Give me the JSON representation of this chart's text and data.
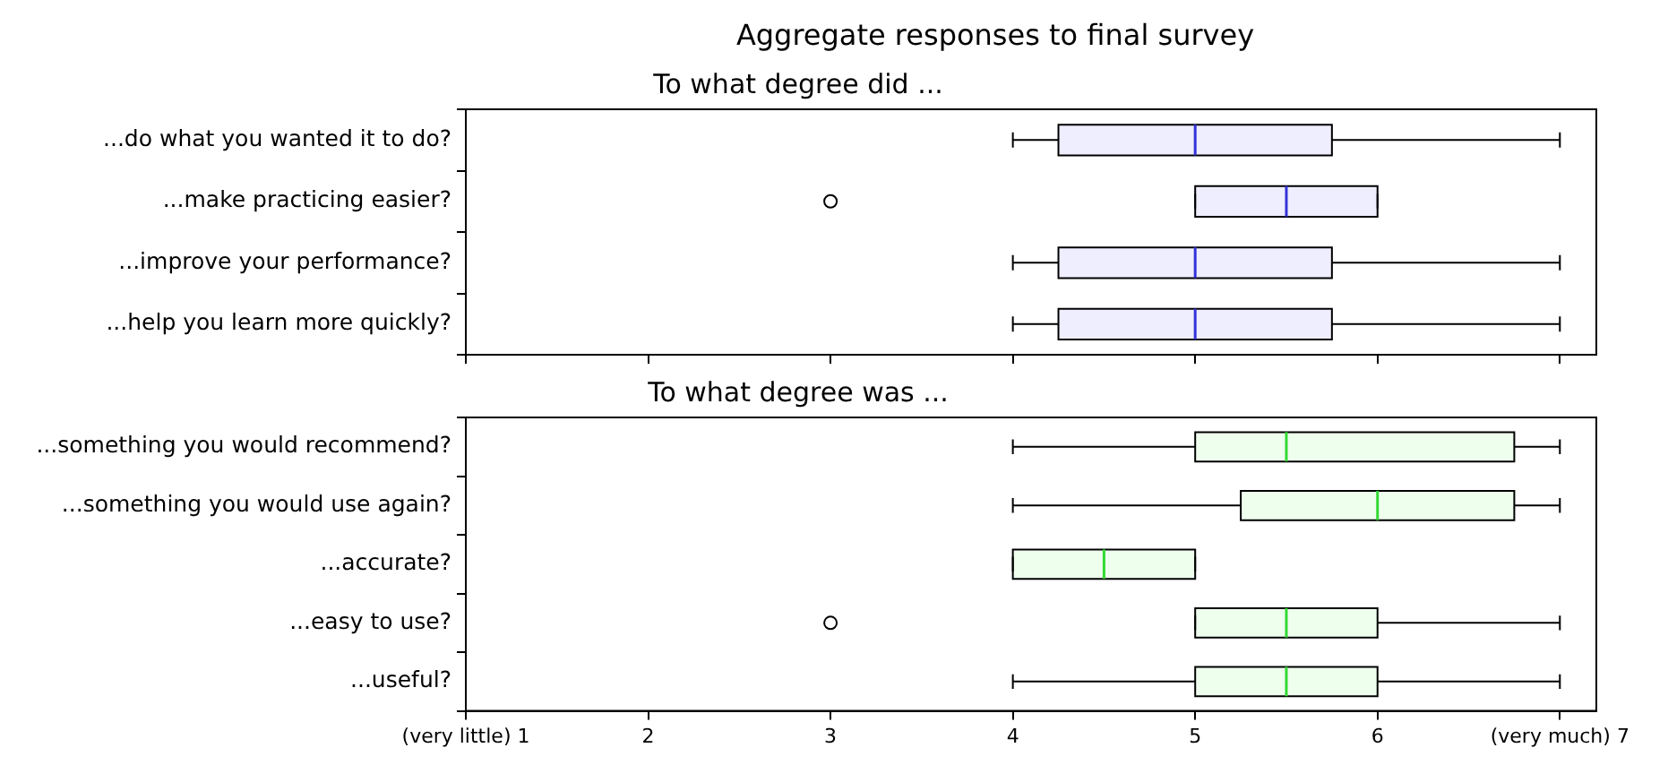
{
  "chart_data": [
    {
      "type": "box",
      "title": "Aggregate responses to final survey",
      "subtitle": "To what degree did ...",
      "categories": [
        "...do what you wanted it to do?",
        "...make practicing easier?",
        "...improve your performance?",
        "...help you learn more quickly?"
      ],
      "series": [
        {
          "color": "#eeeeff",
          "boxes": [
            {
              "low": 4,
              "q1": 4.25,
              "median": 5,
              "q3": 5.75,
              "high": 7
            },
            {
              "low": 5,
              "q1": 5,
              "median": 5.5,
              "q3": 6,
              "high": 6,
              "outliers": [
                3
              ]
            },
            {
              "low": 4,
              "q1": 4.25,
              "median": 5,
              "q3": 5.75,
              "high": 7
            },
            {
              "low": 4,
              "q1": 4.25,
              "median": 5,
              "q3": 5.75,
              "high": 7
            }
          ]
        }
      ],
      "orientation": "horizontal",
      "xlim": [
        1,
        7.2
      ],
      "xticks": [
        1,
        2,
        3,
        4,
        5,
        6,
        7
      ],
      "tick_labels": "y",
      "grid": false,
      "legend": false
    },
    {
      "type": "box",
      "title": "To what degree was ...",
      "categories": [
        "...something you would recommend?",
        "...something you would use again?",
        "...accurate?",
        "...easy to use?",
        "...useful?"
      ],
      "series": [
        {
          "color": "#eeffee",
          "boxes": [
            {
              "low": 4,
              "q1": 5,
              "median": 5.5,
              "q3": 6.75,
              "high": 7
            },
            {
              "low": 4,
              "q1": 5.25,
              "median": 6,
              "q3": 6.75,
              "high": 7
            },
            {
              "low": 4,
              "q1": 4,
              "median": 4.5,
              "q3": 5,
              "high": 5
            },
            {
              "low": 5,
              "q1": 5,
              "median": 5.5,
              "q3": 6,
              "high": 7,
              "outliers": [
                3
              ]
            },
            {
              "low": 4,
              "q1": 5,
              "median": 5.5,
              "q3": 6,
              "high": 7
            }
          ]
        }
      ],
      "orientation": "horizontal",
      "xlim": [
        1,
        7.2
      ],
      "xticks": [
        {
          "value": 1,
          "label": "(very little) 1"
        },
        2,
        3,
        4,
        5,
        6,
        {
          "value": 7,
          "label": "(very much) 7"
        }
      ],
      "grid": false,
      "legend": false
    }
  ]
}
